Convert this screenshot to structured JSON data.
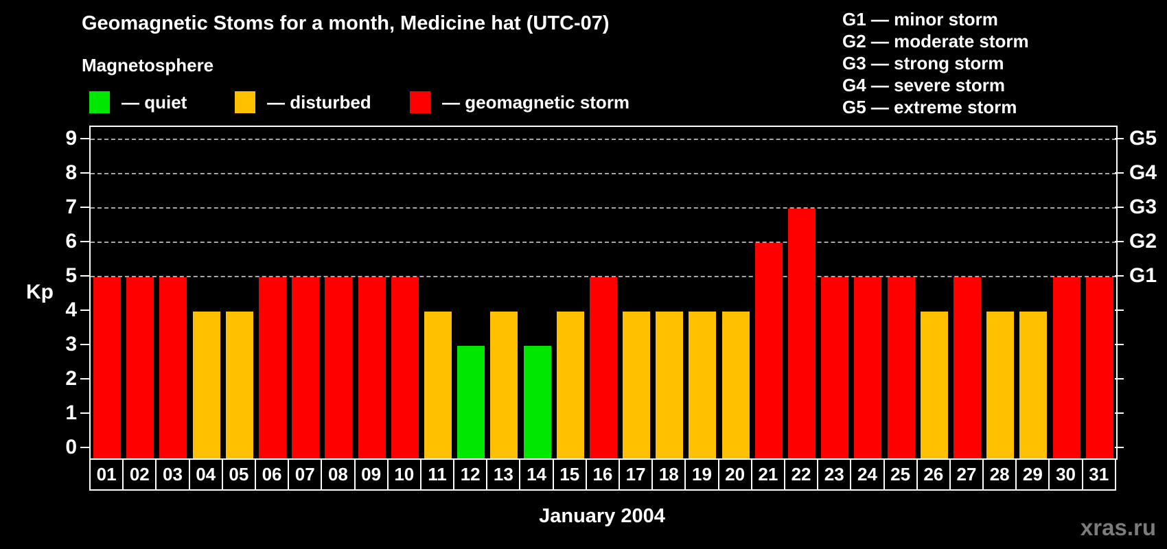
{
  "header": {
    "title": "Geomagnetic Stoms for a month, Medicine hat (UTC-07)"
  },
  "legend": {
    "title": "Magnetosphere",
    "items": [
      {
        "status": "quiet",
        "label": "— quiet",
        "color": "#00e800"
      },
      {
        "status": "disturbed",
        "label": "— disturbed",
        "color": "#ffc000"
      },
      {
        "status": "storm",
        "label": "— geomagnetic storm",
        "color": "#ff0000"
      }
    ]
  },
  "g_legend": [
    "G1 — minor storm",
    "G2 — moderate storm",
    "G3 — strong storm",
    "G4 — severe storm",
    "G5 — extreme storm"
  ],
  "yaxis": {
    "label": "Kp",
    "ticks": [
      0,
      1,
      2,
      3,
      4,
      5,
      6,
      7,
      8,
      9
    ]
  },
  "right_axis": {
    "labels": [
      {
        "text": "G1",
        "kp": 5
      },
      {
        "text": "G2",
        "kp": 6
      },
      {
        "text": "G3",
        "kp": 7
      },
      {
        "text": "G4",
        "kp": 8
      },
      {
        "text": "G5",
        "kp": 9
      }
    ]
  },
  "xaxis": {
    "title": "January 2004"
  },
  "watermark": "xras.ru",
  "chart_data": {
    "type": "bar",
    "title": "Geomagnetic Stoms for a month, Medicine hat (UTC-07)",
    "xlabel": "January 2004",
    "ylabel": "Kp",
    "ylim": [
      0,
      9
    ],
    "grid": "dashed horizontal lines at Kp 5-9 (G1-G5)",
    "gridlines_kp": [
      5,
      6,
      7,
      8,
      9
    ],
    "legend_position": "top-left and top-right",
    "categories": [
      "01",
      "02",
      "03",
      "04",
      "05",
      "06",
      "07",
      "08",
      "09",
      "10",
      "11",
      "12",
      "13",
      "14",
      "15",
      "16",
      "17",
      "18",
      "19",
      "20",
      "21",
      "22",
      "23",
      "24",
      "25",
      "26",
      "27",
      "28",
      "29",
      "30",
      "31"
    ],
    "values": [
      5,
      5,
      5,
      4,
      4,
      5,
      5,
      5,
      5,
      5,
      4,
      3,
      4,
      3,
      4,
      5,
      4,
      4,
      4,
      4,
      6,
      7,
      5,
      5,
      5,
      4,
      5,
      4,
      4,
      5,
      5
    ],
    "statuses": [
      "storm",
      "storm",
      "storm",
      "disturbed",
      "disturbed",
      "storm",
      "storm",
      "storm",
      "storm",
      "storm",
      "disturbed",
      "quiet",
      "disturbed",
      "quiet",
      "disturbed",
      "storm",
      "disturbed",
      "disturbed",
      "disturbed",
      "disturbed",
      "storm",
      "storm",
      "storm",
      "storm",
      "storm",
      "disturbed",
      "storm",
      "disturbed",
      "disturbed",
      "storm",
      "storm"
    ],
    "colors": {
      "quiet": "#00e800",
      "disturbed": "#ffc000",
      "storm": "#ff0000"
    }
  }
}
